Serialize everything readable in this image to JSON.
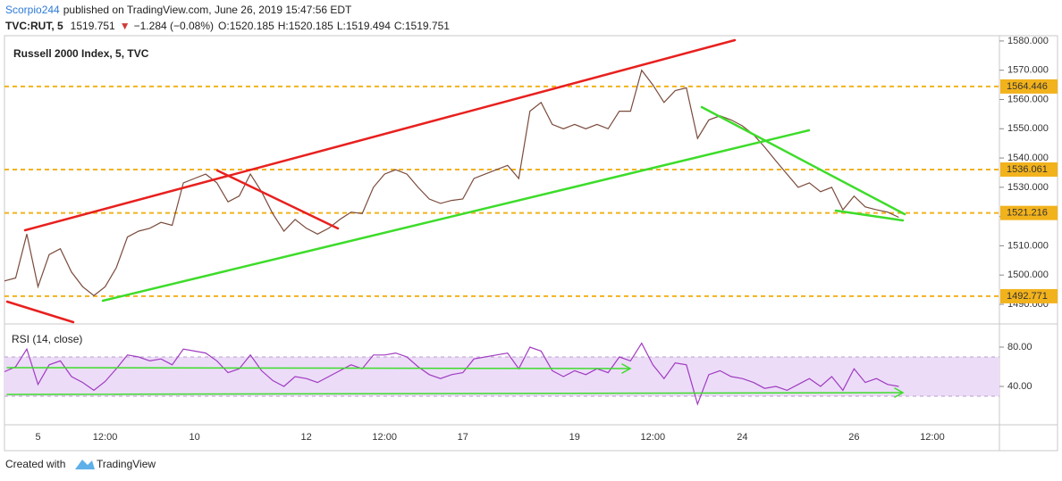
{
  "header": {
    "author": "Scorpio244",
    "published": "published on TradingView.com, June 26, 2019 15:47:56 EDT",
    "symbol": "TVC:RUT, 5",
    "last": "1519.751",
    "change": "−1.284 (−0.08%)",
    "open": "O:1520.185",
    "high": "H:1520.185",
    "low": "L:1519.494",
    "close": "C:1519.751"
  },
  "chart_data": [
    {
      "type": "line",
      "title": "Russell 2000 Index, 5, TVC",
      "color": "#7a4b3c",
      "categories": [
        null,
        null,
        null,
        "5",
        null,
        null,
        null,
        null,
        null,
        "12:00",
        null,
        null,
        null,
        null,
        null,
        null,
        null,
        "10",
        null,
        null,
        null,
        null,
        null,
        null,
        null,
        null,
        null,
        "12",
        null,
        null,
        null,
        null,
        null,
        null,
        "12:00",
        null,
        null,
        null,
        null,
        null,
        null,
        "17",
        null,
        null,
        null,
        null,
        null,
        null,
        null,
        null,
        null,
        "19",
        null,
        null,
        null,
        null,
        null,
        null,
        "12:00",
        null,
        null,
        null,
        null,
        null,
        null,
        null,
        "24",
        null,
        null,
        null,
        null,
        null,
        null,
        null,
        null,
        null,
        "26",
        null,
        null,
        null,
        null,
        null,
        null,
        "12:00",
        null,
        null,
        null,
        null,
        null,
        null
      ],
      "values": [
        1498,
        1499,
        1514,
        1496,
        1507,
        1509,
        1501,
        1496,
        1493,
        1496,
        1502.5,
        1513,
        1515,
        1516,
        1518,
        1517,
        1531.5,
        1533,
        1534.5,
        1531.5,
        1525,
        1527,
        1534.5,
        1528.5,
        1521,
        1515,
        1519,
        1516,
        1514,
        1516,
        1519,
        1521.5,
        1521,
        1530,
        1534.5,
        1536,
        1534.5,
        1530,
        1526,
        1524.5,
        1525.5,
        1526,
        1533,
        1534.5,
        1536,
        1537.5,
        1533,
        1556,
        1559,
        1551.5,
        1550,
        1551.5,
        1550,
        1551.5,
        1550,
        1556,
        1556,
        1570,
        1565,
        1559,
        1563,
        1564,
        1546.7,
        1553,
        1554.4,
        1553,
        1551,
        1548,
        1543.7,
        1539,
        1534.5,
        1530,
        1531.5,
        1528.5,
        1530,
        1522.3,
        1527,
        1523.3,
        1522.3,
        1521.5,
        1519.751,
        null,
        null,
        null,
        null,
        null,
        null,
        null,
        null,
        null
      ],
      "ylim": [
        1483.6,
        1581.8
      ],
      "yticks": [
        {
          "value": 1490,
          "label": "1490.000"
        },
        {
          "value": 1500,
          "label": "1500.000"
        },
        {
          "value": 1510,
          "label": "1510.000"
        },
        {
          "value": 1520,
          "label": "1520.000"
        },
        {
          "value": 1530,
          "label": "1530.000"
        },
        {
          "value": 1540,
          "label": "1540.000"
        },
        {
          "value": 1550,
          "label": "1550.000"
        },
        {
          "value": 1560,
          "label": "1560.000"
        },
        {
          "value": 1570,
          "label": "1570.000"
        },
        {
          "value": 1580,
          "label": "1580.000"
        }
      ],
      "levels": [
        1564.446,
        1536.061,
        1521.216,
        1492.771
      ],
      "level_color": "#f2b21c",
      "grid": false
    },
    {
      "type": "line",
      "title": "RSI (14, close)",
      "color": "#a03cc0",
      "values": [
        55,
        60,
        78,
        42,
        62,
        66,
        50,
        44,
        36,
        45,
        58,
        72,
        70,
        66,
        68,
        62,
        78,
        76,
        74,
        66,
        54,
        58,
        72,
        56,
        46,
        40,
        50,
        48,
        44,
        50,
        56,
        62,
        58,
        72,
        72,
        74,
        70,
        60,
        52,
        48,
        52,
        54,
        68,
        70,
        72,
        74,
        58,
        80,
        76,
        56,
        50,
        56,
        52,
        58,
        54,
        70,
        66,
        84,
        62,
        48,
        64,
        62,
        22,
        52,
        56,
        50,
        48,
        44,
        38,
        40,
        36,
        42,
        48,
        40,
        50,
        36,
        58,
        44,
        48,
        42,
        40,
        null,
        null,
        null,
        null,
        null,
        null,
        null,
        null,
        null
      ],
      "ylim": [
        0.9,
        101.8
      ],
      "yticks": [
        {
          "value": 80,
          "label": "80.00"
        },
        {
          "value": 40,
          "label": "40.00"
        }
      ],
      "band": [
        30,
        70
      ],
      "band_color": "#ecdcf8",
      "grid": false
    }
  ],
  "footer": {
    "created": "Created with",
    "brand": "TradingView"
  }
}
